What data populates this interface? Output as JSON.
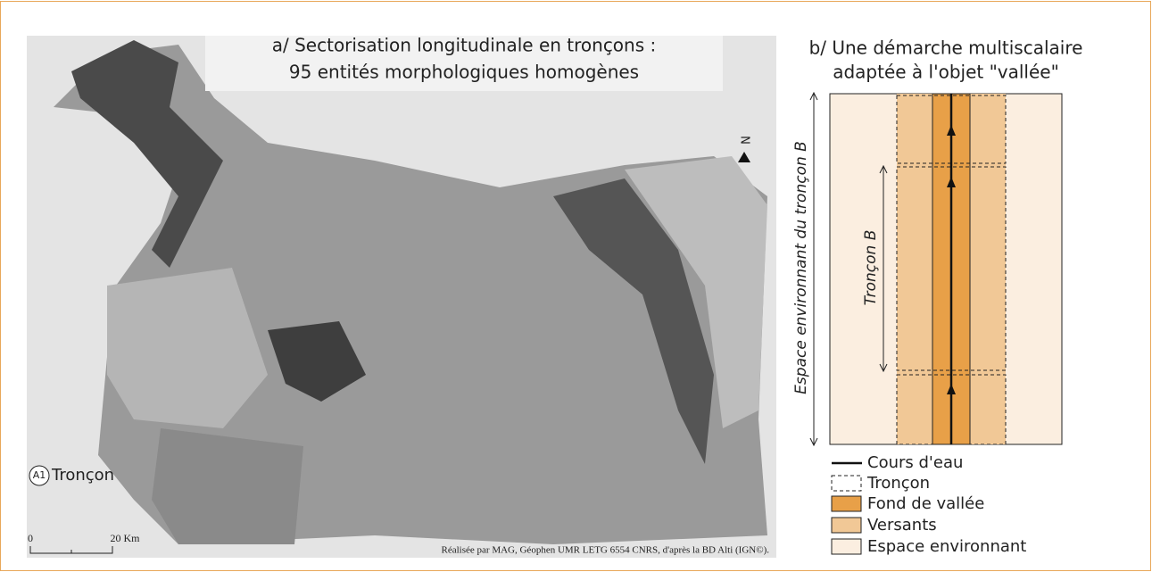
{
  "panel_a": {
    "title_lines": [
      "a/ Sectorisation longitudinale en tronçons :",
      "95 entités morphologiques homogènes"
    ],
    "north": "N",
    "legend_symbol": "A1",
    "legend_label": "Tronçon",
    "scale_labels": [
      "0",
      "20 Km"
    ],
    "credit": "Réalisée par MAG, Géophen UMR LETG 6554 CNRS, d'après la BD Alti (IGN©)."
  },
  "panel_b": {
    "title_lines": [
      "b/ Une démarche multiscalaire",
      "adaptée à l'objet \"vallée\""
    ],
    "outer_label": "Espace environnant du tronçon B",
    "inner_label": "Tronçon B",
    "legend": [
      "Cours d'eau",
      "Tronçon",
      "Fond de vallée",
      "Versants",
      "Espace environnant"
    ]
  }
}
